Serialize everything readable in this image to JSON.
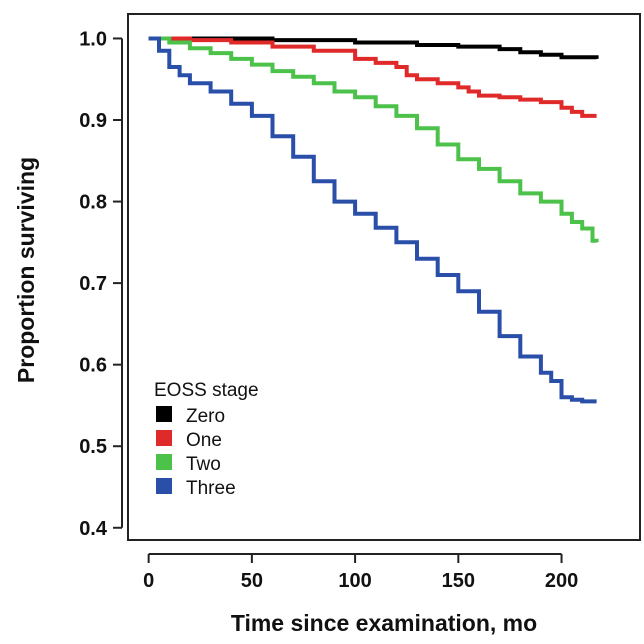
{
  "chart_data": {
    "type": "line",
    "title": "",
    "xlabel": "Time since examination, mo",
    "ylabel": "Proportion surviving",
    "xlim": [
      -10,
      238
    ],
    "ylim": [
      0.385,
      1.03
    ],
    "xticks": [
      0,
      50,
      100,
      150,
      200
    ],
    "xtick_labels": [
      "0",
      "50",
      "100",
      "150",
      "200"
    ],
    "yticks": [
      0.4,
      0.5,
      0.6,
      0.7,
      0.8,
      0.9,
      1.0
    ],
    "ytick_labels": [
      "0.4",
      "0.5",
      "0.6",
      "0.7",
      "0.8",
      "0.9",
      "1.0"
    ],
    "grid": false,
    "legend": {
      "title": "EOSS stage",
      "placement": "bottom-left"
    },
    "series": [
      {
        "name": "Zero",
        "color": "#000000",
        "x": [
          0,
          60,
          100,
          130,
          150,
          170,
          180,
          190,
          200,
          217
        ],
        "y": [
          1.0,
          0.998,
          0.995,
          0.992,
          0.99,
          0.987,
          0.983,
          0.98,
          0.977,
          0.975
        ]
      },
      {
        "name": "One",
        "color": "#e02a2a",
        "x": [
          0,
          20,
          40,
          60,
          80,
          100,
          110,
          120,
          125,
          130,
          140,
          150,
          155,
          160,
          170,
          180,
          190,
          200,
          205,
          210,
          217
        ],
        "y": [
          1.0,
          0.998,
          0.995,
          0.99,
          0.985,
          0.975,
          0.97,
          0.965,
          0.955,
          0.95,
          0.945,
          0.94,
          0.935,
          0.93,
          0.928,
          0.925,
          0.922,
          0.915,
          0.91,
          0.905,
          0.905
        ]
      },
      {
        "name": "Two",
        "color": "#4cc24a",
        "x": [
          0,
          10,
          20,
          30,
          40,
          50,
          60,
          70,
          80,
          90,
          100,
          110,
          120,
          130,
          140,
          150,
          160,
          170,
          180,
          190,
          200,
          205,
          210,
          215,
          217
        ],
        "y": [
          1.0,
          0.995,
          0.988,
          0.982,
          0.975,
          0.968,
          0.96,
          0.953,
          0.945,
          0.935,
          0.928,
          0.917,
          0.905,
          0.89,
          0.87,
          0.852,
          0.84,
          0.825,
          0.81,
          0.8,
          0.785,
          0.775,
          0.767,
          0.752,
          0.75
        ]
      },
      {
        "name": "Three",
        "color": "#2a4fa8",
        "x": [
          0,
          5,
          10,
          15,
          20,
          30,
          40,
          50,
          60,
          70,
          80,
          90,
          100,
          110,
          120,
          130,
          140,
          150,
          160,
          170,
          180,
          190,
          195,
          200,
          205,
          210,
          217
        ],
        "y": [
          1.0,
          0.985,
          0.965,
          0.955,
          0.945,
          0.935,
          0.92,
          0.905,
          0.88,
          0.855,
          0.825,
          0.8,
          0.785,
          0.768,
          0.75,
          0.73,
          0.71,
          0.69,
          0.665,
          0.635,
          0.61,
          0.59,
          0.58,
          0.56,
          0.557,
          0.555,
          0.555
        ]
      }
    ]
  }
}
